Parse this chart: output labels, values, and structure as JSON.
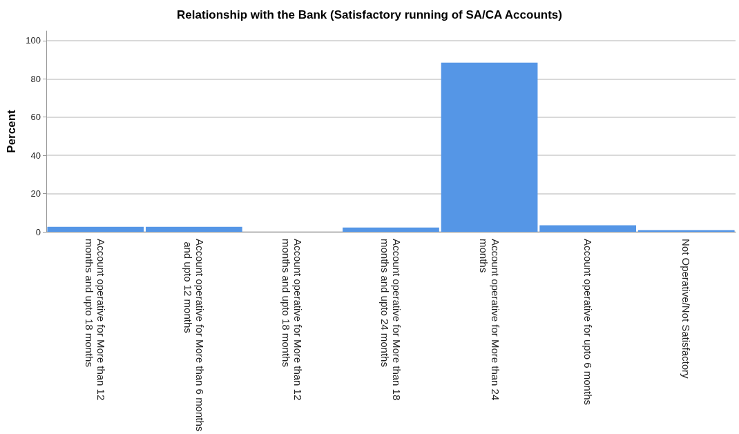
{
  "chart_data": {
    "type": "bar",
    "title": "Relationship with the Bank (Satisfactory running of SA/CA Accounts)",
    "ylabel": "Percent",
    "categories": [
      "Account operative for More than 12 months and upto 18 months",
      "Account operative for More than 6 months and upto 12 months",
      "Account operative for More than 12 months and upto 18 months",
      "Account operative for More than 18 months and upto 24 months",
      "Account operative for More than 24 months",
      "Account operative for upto 6 months",
      "Not Operative/Not Satisfactory"
    ],
    "values": [
      2.6,
      2.6,
      0,
      2.3,
      88.5,
      3.4,
      0.9
    ],
    "color": "#5596e6",
    "ylim": [
      0,
      105
    ],
    "yticks": [
      0,
      20,
      40,
      60,
      80,
      100
    ],
    "grid": "y"
  }
}
